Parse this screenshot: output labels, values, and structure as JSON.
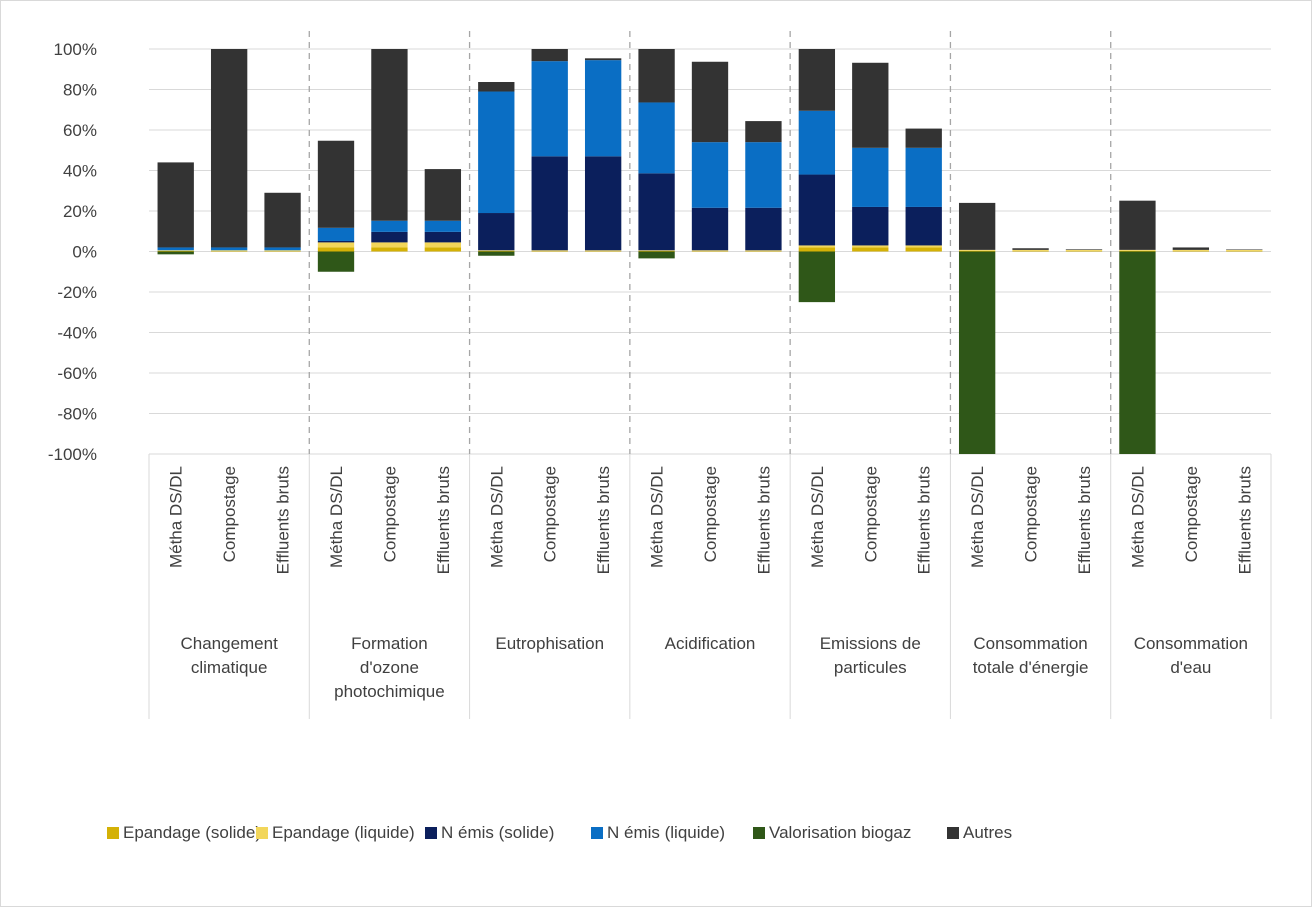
{
  "colors": {
    "Epandage (solide)": "#d4b106",
    "Epandage (liquide)": "#f2d65a",
    "N émis (solide)": "#0b1f5c",
    "N émis (liquide)": "#0a6ec4",
    "Valorisation biogaz": "#2f5718",
    "Autres": "#333333"
  },
  "chart_data": {
    "type": "bar",
    "stacked": true,
    "ylim": [
      -100,
      100
    ],
    "yticks": [
      "100%",
      "80%",
      "60%",
      "40%",
      "20%",
      "0%",
      "-20%",
      "-40%",
      "-60%",
      "-80%",
      "-100%"
    ],
    "grid": true,
    "legend_position": "bottom",
    "groups": [
      {
        "label": "Changement climatique",
        "categories": [
          "Métha DS/DL",
          "Compostage",
          "Effluents bruts"
        ]
      },
      {
        "label": "Formation d'ozone photochimique",
        "categories": [
          "Métha DS/DL",
          "Compostage",
          "Effluents bruts"
        ]
      },
      {
        "label": "Eutrophisation",
        "categories": [
          "Métha DS/DL",
          "Compostage",
          "Effluents bruts"
        ]
      },
      {
        "label": "Acidification",
        "categories": [
          "Métha DS/DL",
          "Compostage",
          "Effluents bruts"
        ]
      },
      {
        "label": "Emissions de particules",
        "categories": [
          "Métha DS/DL",
          "Compostage",
          "Effluents bruts"
        ]
      },
      {
        "label": "Consommation totale d'énergie",
        "categories": [
          "Métha DS/DL",
          "Compostage",
          "Effluents bruts"
        ]
      },
      {
        "label": "Consommation d'eau",
        "categories": [
          "Métha DS/DL",
          "Compostage",
          "Effluents bruts"
        ]
      }
    ],
    "group_label_lines": [
      [
        "Changement",
        "climatique"
      ],
      [
        "Formation",
        "d'ozone",
        "photochimique"
      ],
      [
        "Eutrophisation"
      ],
      [
        "Acidification"
      ],
      [
        "Emissions de",
        "particules"
      ],
      [
        "Consommation",
        "totale d'énergie"
      ],
      [
        "Consommation",
        "d'eau"
      ]
    ],
    "series": [
      {
        "name": "Epandage (solide)",
        "values": [
          0.3,
          0.3,
          0.3,
          2,
          2,
          2,
          0.3,
          0.3,
          0.3,
          0.3,
          0.3,
          0.3,
          2,
          2,
          2,
          0.3,
          0.3,
          0.3,
          0.3,
          0.3,
          0.3
        ]
      },
      {
        "name": "Epandage (liquide)",
        "values": [
          0.3,
          0.3,
          0.3,
          2.5,
          2.5,
          2.5,
          0.3,
          0.3,
          0.3,
          0.3,
          0.3,
          0.3,
          1,
          1,
          1,
          0.5,
          0.5,
          0.5,
          0.5,
          0.5,
          0.5
        ]
      },
      {
        "name": "N émis (solide)",
        "values": [
          0,
          0,
          0,
          0.7,
          5.2,
          5.2,
          18.4,
          46.4,
          46.4,
          38,
          21,
          21,
          35,
          19,
          19,
          0,
          0,
          0,
          0,
          0,
          0
        ]
      },
      {
        "name": "N émis (liquide)",
        "values": [
          1.4,
          1.4,
          1.4,
          6.5,
          5.5,
          5.5,
          60,
          47,
          47.5,
          35,
          32.4,
          32.4,
          31.5,
          29.2,
          29.2,
          0,
          0,
          0,
          0,
          0,
          0
        ]
      },
      {
        "name": "Valorisation biogaz",
        "values": [
          -1.4,
          0,
          0,
          -10,
          0,
          0,
          -2.1,
          0,
          0,
          -3.4,
          0,
          0,
          -25,
          0,
          0,
          -100,
          0,
          0,
          -100,
          0,
          0
        ]
      },
      {
        "name": "Autres",
        "values": [
          42,
          98,
          27,
          43,
          84.8,
          25.5,
          4.7,
          6,
          0.9,
          26.4,
          39.7,
          10.4,
          30.5,
          42,
          9.5,
          23.2,
          0.8,
          0.3,
          24.3,
          1.2,
          0.2
        ]
      }
    ]
  }
}
